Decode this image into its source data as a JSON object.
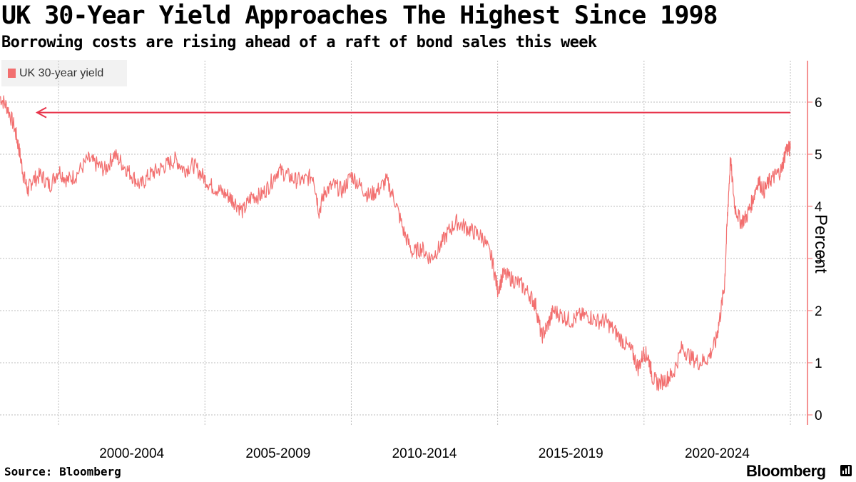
{
  "title": "UK 30-Year Yield Approaches The Highest Since 1998",
  "subtitle": "Borrowing costs are rising ahead of a raft of bond sales this week",
  "source": "Source: Bloomberg",
  "brand": "Bloomberg",
  "colors": {
    "series": "#f26f6f",
    "arrow": "#e8334a",
    "axis": "#f26f6f",
    "grid": "#bdbdbd"
  },
  "chart_data": {
    "type": "line",
    "title": "UK 30-Year Yield Approaches The Highest Since 1998",
    "ylabel": "Percent",
    "xlabel": "",
    "x_range": [
      1998.0,
      2025.0
    ],
    "ylim": [
      0,
      6.5
    ],
    "y_ticks": [
      0,
      1,
      2,
      3,
      4,
      5,
      6
    ],
    "x_ticks": [
      2000,
      2005,
      2010,
      2015,
      2020,
      2025
    ],
    "x_tick_labels": [
      {
        "label": "2000-2004",
        "x": 2002.5
      },
      {
        "label": "2005-2009",
        "x": 2007.5
      },
      {
        "label": "2010-2014",
        "x": 2012.5
      },
      {
        "label": "2015-2019",
        "x": 2017.5
      },
      {
        "label": "2020-2024",
        "x": 2022.5
      }
    ],
    "reference_line": {
      "y": 5.8,
      "x_start": 1999.2,
      "x_end": 2025.0,
      "arrow": "left"
    },
    "series": [
      {
        "name": "UK 30-year yield",
        "x": [
          1998.0,
          1998.25,
          1998.5,
          1998.65,
          1998.8,
          1998.95,
          1999.1,
          1999.4,
          1999.7,
          2000.0,
          2000.3,
          2000.6,
          2001.0,
          2001.3,
          2001.6,
          2001.9,
          2002.2,
          2002.5,
          2002.8,
          2003.1,
          2003.4,
          2003.7,
          2004.0,
          2004.3,
          2004.6,
          2004.9,
          2005.2,
          2005.5,
          2005.8,
          2006.0,
          2006.3,
          2006.6,
          2006.9,
          2007.2,
          2007.5,
          2007.8,
          2008.1,
          2008.4,
          2008.7,
          2008.9,
          2009.1,
          2009.4,
          2009.7,
          2010.0,
          2010.3,
          2010.6,
          2010.9,
          2011.2,
          2011.5,
          2011.8,
          2012.1,
          2012.4,
          2012.7,
          2013.0,
          2013.3,
          2013.6,
          2013.9,
          2014.2,
          2014.5,
          2014.8,
          2015.0,
          2015.2,
          2015.5,
          2015.8,
          2016.1,
          2016.3,
          2016.5,
          2016.7,
          2016.9,
          2017.2,
          2017.5,
          2017.8,
          2018.1,
          2018.4,
          2018.7,
          2019.0,
          2019.3,
          2019.6,
          2019.8,
          2020.0,
          2020.15,
          2020.3,
          2020.5,
          2020.8,
          2021.0,
          2021.3,
          2021.6,
          2021.9,
          2022.2,
          2022.45,
          2022.6,
          2022.75,
          2022.85,
          2022.95,
          2023.1,
          2023.3,
          2023.5,
          2023.7,
          2023.9,
          2024.1,
          2024.3,
          2024.5,
          2024.7,
          2024.85,
          2025.0
        ],
        "y": [
          6.1,
          5.9,
          5.5,
          5.1,
          4.6,
          4.3,
          4.5,
          4.6,
          4.4,
          4.7,
          4.5,
          4.6,
          4.9,
          4.8,
          4.7,
          5.0,
          4.8,
          4.6,
          4.4,
          4.6,
          4.7,
          4.8,
          4.9,
          4.7,
          4.8,
          4.6,
          4.4,
          4.3,
          4.2,
          4.1,
          3.9,
          4.2,
          4.2,
          4.4,
          4.7,
          4.6,
          4.5,
          4.5,
          4.6,
          3.9,
          4.3,
          4.4,
          4.3,
          4.6,
          4.4,
          4.2,
          4.3,
          4.5,
          4.1,
          3.5,
          3.1,
          3.2,
          3.0,
          3.2,
          3.5,
          3.7,
          3.6,
          3.5,
          3.4,
          3.0,
          2.4,
          2.7,
          2.6,
          2.5,
          2.3,
          2.1,
          1.5,
          1.7,
          2.0,
          1.9,
          1.8,
          1.9,
          1.9,
          1.8,
          1.8,
          1.6,
          1.4,
          1.2,
          0.9,
          1.2,
          1.1,
          0.7,
          0.6,
          0.7,
          0.8,
          1.3,
          1.1,
          1.0,
          1.1,
          1.4,
          1.9,
          2.5,
          3.8,
          4.9,
          4.0,
          3.7,
          3.8,
          4.1,
          4.5,
          4.3,
          4.5,
          4.6,
          4.7,
          5.1,
          5.1
        ]
      }
    ]
  }
}
